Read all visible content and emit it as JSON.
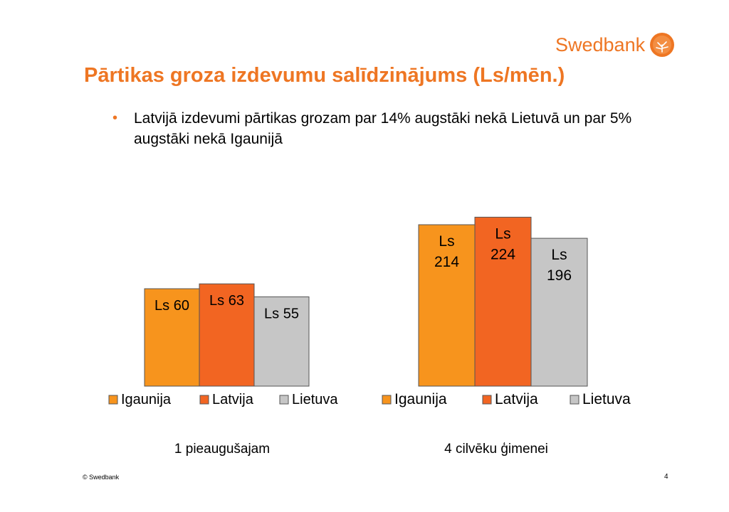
{
  "header": {
    "logo_text": "Swedbank",
    "title": "Pārtikas groza izdevumu salīdzinājums (Ls/mēn.)"
  },
  "bullets": [
    "Latvijā izdevumi pārtikas grozam par 14% augstāki nekā Lietuvā un par 5% augstāki nekā Igaunijā"
  ],
  "colors": {
    "accent": "#ee7623",
    "igaunija": "#f7941d",
    "latvija": "#f26522",
    "lietuva": "#c6c6c6"
  },
  "chart_data": [
    {
      "type": "bar",
      "title": "1 pieaugušajam",
      "categories": [
        "Igaunija",
        "Latvija",
        "Lietuva"
      ],
      "values": [
        60,
        63,
        55
      ],
      "data_labels": [
        "Ls 60",
        "Ls 63",
        "Ls 55"
      ],
      "legend": [
        "Igaunija",
        "Latvija",
        "Lietuva"
      ],
      "legend_position": "bottom",
      "grid": false
    },
    {
      "type": "bar",
      "title": "4 cilvēku ģimenei",
      "categories": [
        "Igaunija",
        "Latvija",
        "Lietuva"
      ],
      "values": [
        214,
        224,
        196
      ],
      "data_labels": [
        "Ls\n214",
        "Ls\n224",
        "Ls\n196"
      ],
      "legend": [
        "Igaunija",
        "Latvija",
        "Lietuva"
      ],
      "legend_position": "bottom",
      "grid": false
    }
  ],
  "footer": {
    "copyright": "© Swedbank",
    "page_number": "4"
  }
}
